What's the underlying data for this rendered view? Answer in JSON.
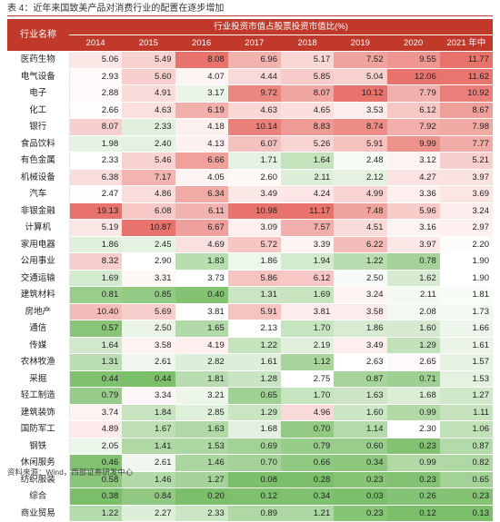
{
  "title": "表 4：近年来国致美产品对消费行业的配置在逐步增加",
  "table": {
    "corner_label": "行业名称",
    "span_header": "行业投资市值占股票投资市值比(%)",
    "years": [
      "2014",
      "2015",
      "2016",
      "2017",
      "2018",
      "2019",
      "2020",
      "2021 年中"
    ],
    "rows": [
      {
        "name": "医药生物",
        "values": [
          "5.06",
          "5.49",
          "8.08",
          "6.96",
          "5.17",
          "7.52",
          "9.55",
          "11.77"
        ]
      },
      {
        "name": "电气设备",
        "values": [
          "2.93",
          "5.60",
          "4.07",
          "4.44",
          "5.85",
          "5.04",
          "12.06",
          "11.62"
        ]
      },
      {
        "name": "电子",
        "values": [
          "2.88",
          "4.91",
          "3.17",
          "9.72",
          "8.07",
          "10.12",
          "7.79",
          "10.92"
        ]
      },
      {
        "name": "化工",
        "values": [
          "2.66",
          "4.63",
          "6.19",
          "4.63",
          "4.65",
          "3.53",
          "6.12",
          "8.67"
        ]
      },
      {
        "name": "银行",
        "values": [
          "8.07",
          "2.33",
          "4.18",
          "10.14",
          "8.83",
          "8.74",
          "7.92",
          "7.98"
        ]
      },
      {
        "name": "食品饮料",
        "values": [
          "1.98",
          "2.40",
          "4.13",
          "6.07",
          "5.26",
          "5.91",
          "9.99",
          "7.77"
        ]
      },
      {
        "name": "有色金属",
        "values": [
          "2.33",
          "5.46",
          "6.66",
          "1.71",
          "1.64",
          "2.48",
          "3.12",
          "5.21"
        ]
      },
      {
        "name": "机械设备",
        "values": [
          "6.38",
          "7.17",
          "4.05",
          "2.60",
          "2.11",
          "2.12",
          "4.27",
          "3.97"
        ]
      },
      {
        "name": "汽车",
        "values": [
          "2.47",
          "4.86",
          "6.34",
          "3.49",
          "4.24",
          "4.99",
          "3.36",
          "3.69"
        ]
      },
      {
        "name": "非银金融",
        "values": [
          "19.13",
          "6.08",
          "6.11",
          "10.98",
          "11.17",
          "7.48",
          "5.96",
          "3.24"
        ]
      },
      {
        "name": "计算机",
        "values": [
          "5.19",
          "10.87",
          "6.67",
          "3.09",
          "7.57",
          "4.51",
          "3.16",
          "2.97"
        ]
      },
      {
        "name": "家用电器",
        "values": [
          "1.86",
          "2.45",
          "4.69",
          "5.72",
          "3.39",
          "6.22",
          "3.97",
          "2.20"
        ]
      },
      {
        "name": "公用事业",
        "values": [
          "8.32",
          "2.90",
          "1.83",
          "1.86",
          "1.94",
          "1.22",
          "0.78",
          "1.90"
        ]
      },
      {
        "name": "交通运输",
        "values": [
          "1.69",
          "3.31",
          "3.73",
          "5.86",
          "6.12",
          "2.50",
          "1.62",
          "1.90"
        ]
      },
      {
        "name": "建筑材料",
        "values": [
          "0.81",
          "0.85",
          "0.40",
          "1.31",
          "1.69",
          "3.24",
          "2.11",
          "1.81"
        ]
      },
      {
        "name": "房地产",
        "values": [
          "10.40",
          "5.69",
          "3.81",
          "5.91",
          "3.81",
          "3.58",
          "2.08",
          "1.73"
        ]
      },
      {
        "name": "通信",
        "values": [
          "0.57",
          "2.50",
          "1.65",
          "2.13",
          "1.70",
          "1.86",
          "1.60",
          "1.66"
        ]
      },
      {
        "name": "传媒",
        "values": [
          "1.64",
          "3.58",
          "4.19",
          "1.22",
          "2.19",
          "3.49",
          "1.29",
          "1.61"
        ]
      },
      {
        "name": "农林牧渔",
        "values": [
          "1.31",
          "2.61",
          "2.82",
          "1.61",
          "1.12",
          "2.63",
          "2.65",
          "1.57"
        ]
      },
      {
        "name": "采掘",
        "values": [
          "0.44",
          "0.44",
          "1.81",
          "1.28",
          "2.75",
          "0.87",
          "0.71",
          "1.53"
        ]
      },
      {
        "name": "轻工制造",
        "values": [
          "0.79",
          "3.34",
          "3.21",
          "0.65",
          "1.70",
          "1.63",
          "1.68",
          "1.27"
        ]
      },
      {
        "name": "建筑装饰",
        "values": [
          "3.74",
          "1.84",
          "2.85",
          "1.29",
          "4.96",
          "1.60",
          "0.99",
          "1.11"
        ]
      },
      {
        "name": "国防军工",
        "values": [
          "4.89",
          "1.67",
          "1.63",
          "1.68",
          "0.70",
          "1.14",
          "2.30",
          "1.06"
        ]
      },
      {
        "name": "钢铁",
        "values": [
          "2.05",
          "1.41",
          "1.53",
          "0.69",
          "0.79",
          "0.60",
          "0.23",
          "0.87"
        ]
      },
      {
        "name": "休闲服务",
        "values": [
          "0.46",
          "2.61",
          "1.46",
          "0.70",
          "0.66",
          "0.34",
          "0.99",
          "0.82"
        ]
      },
      {
        "name": "纺织服装",
        "values": [
          "0.58",
          "1.46",
          "1.27",
          "0.08",
          "0.28",
          "0.23",
          "0.23",
          "0.65"
        ]
      },
      {
        "name": "综合",
        "values": [
          "0.38",
          "0.84",
          "0.20",
          "0.12",
          "0.34",
          "0.03",
          "0.26",
          "0.23"
        ]
      },
      {
        "name": "商业贸易",
        "values": [
          "1.22",
          "2.27",
          "2.33",
          "0.89",
          "1.21",
          "0.23",
          "0.12",
          "0.13"
        ]
      }
    ]
  },
  "footnote": "资料来源：Wind，西部证券研发中心",
  "colors": {
    "header_red": "#c0392b",
    "heat_high": "#e8736c",
    "heat_mid": "#ffffff",
    "heat_low": "#7cbf6b"
  }
}
